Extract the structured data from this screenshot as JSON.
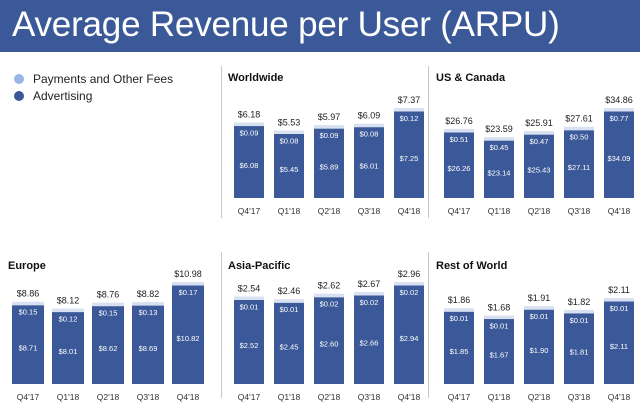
{
  "title": "Average Revenue per User (ARPU)",
  "legend": [
    {
      "label": "Payments and Other Fees",
      "color": "#9ab6e8"
    },
    {
      "label": "Advertising",
      "color": "#3b5998"
    }
  ],
  "colors": {
    "advertising": "#3b5998",
    "payments": "#d8e1f2",
    "title_bar": "#3b5998"
  },
  "chart_data": [
    {
      "type": "bar",
      "stacked": true,
      "title": "Worldwide",
      "categories": [
        "Q4'17",
        "Q1'18",
        "Q2'18",
        "Q3'18",
        "Q4'18"
      ],
      "series": [
        {
          "name": "Advertising",
          "values": [
            6.08,
            5.45,
            5.89,
            6.01,
            7.25
          ],
          "labels": [
            "$6.08",
            "$5.45",
            "$5.89",
            "$6.01",
            "$7.25"
          ]
        },
        {
          "name": "Payments and Other Fees",
          "values": [
            0.09,
            0.08,
            0.09,
            0.08,
            0.12
          ],
          "labels": [
            "$0.09",
            "$0.08",
            "$0.09",
            "$0.08",
            "$0.12"
          ]
        }
      ],
      "totals": [
        6.18,
        5.53,
        5.97,
        6.09,
        7.37
      ],
      "total_labels": [
        "$6.18",
        "$5.53",
        "$5.97",
        "$6.09",
        "$7.37"
      ]
    },
    {
      "type": "bar",
      "stacked": true,
      "title": "US & Canada",
      "categories": [
        "Q4'17",
        "Q1'18",
        "Q2'18",
        "Q3'18",
        "Q4'18"
      ],
      "series": [
        {
          "name": "Advertising",
          "values": [
            26.26,
            23.14,
            25.43,
            27.11,
            34.09
          ],
          "labels": [
            "$26.26",
            "$23.14",
            "$25.43",
            "$27.11",
            "$34.09"
          ]
        },
        {
          "name": "Payments and Other Fees",
          "values": [
            0.51,
            0.45,
            0.47,
            0.5,
            0.77
          ],
          "labels": [
            "$0.51",
            "$0.45",
            "$0.47",
            "$0.50",
            "$0.77"
          ]
        }
      ],
      "totals": [
        26.76,
        23.59,
        25.91,
        27.61,
        34.86
      ],
      "total_labels": [
        "$26.76",
        "$23.59",
        "$25.91",
        "$27.61",
        "$34.86"
      ]
    },
    {
      "type": "bar",
      "stacked": true,
      "title": "Europe",
      "categories": [
        "Q4'17",
        "Q1'18",
        "Q2'18",
        "Q3'18",
        "Q4'18"
      ],
      "series": [
        {
          "name": "Advertising",
          "values": [
            8.71,
            8.01,
            8.62,
            8.69,
            10.82
          ],
          "labels": [
            "$8.71",
            "$8.01",
            "$8.62",
            "$8.69",
            "$10.82"
          ]
        },
        {
          "name": "Payments and Other Fees",
          "values": [
            0.15,
            0.12,
            0.15,
            0.13,
            0.17
          ],
          "labels": [
            "$0.15",
            "$0.12",
            "$0.15",
            "$0.13",
            "$0.17"
          ]
        }
      ],
      "totals": [
        8.86,
        8.12,
        8.76,
        8.82,
        10.98
      ],
      "total_labels": [
        "$8.86",
        "$8.12",
        "$8.76",
        "$8.82",
        "$10.98"
      ]
    },
    {
      "type": "bar",
      "stacked": true,
      "title": "Asia-Pacific",
      "categories": [
        "Q4'17",
        "Q1'18",
        "Q2'18",
        "Q3'18",
        "Q4'18"
      ],
      "series": [
        {
          "name": "Advertising",
          "values": [
            2.52,
            2.45,
            2.6,
            2.66,
            2.94
          ],
          "labels": [
            "$2.52",
            "$2.45",
            "$2.60",
            "$2.66",
            "$2.94"
          ]
        },
        {
          "name": "Payments and Other Fees",
          "values": [
            0.01,
            0.01,
            0.02,
            0.02,
            0.02
          ],
          "labels": [
            "$0.01",
            "$0.01",
            "$0.02",
            "$0.02",
            "$0.02"
          ]
        }
      ],
      "totals": [
        2.54,
        2.46,
        2.62,
        2.67,
        2.96
      ],
      "total_labels": [
        "$2.54",
        "$2.46",
        "$2.62",
        "$2.67",
        "$2.96"
      ]
    },
    {
      "type": "bar",
      "stacked": true,
      "title": "Rest of World",
      "categories": [
        "Q4'17",
        "Q1'18",
        "Q2'18",
        "Q3'18",
        "Q4'18"
      ],
      "series": [
        {
          "name": "Advertising",
          "values": [
            1.85,
            1.67,
            1.9,
            1.81,
            2.11
          ],
          "labels": [
            "$1.85",
            "$1.67",
            "$1.90",
            "$1.81",
            "$2.11"
          ]
        },
        {
          "name": "Payments and Other Fees",
          "values": [
            0.01,
            0.01,
            0.01,
            0.01,
            0.01
          ],
          "labels": [
            "$0.01",
            "$0.01",
            "$0.01",
            "$0.01",
            "$0.01"
          ]
        }
      ],
      "totals": [
        1.86,
        1.68,
        1.91,
        1.82,
        2.11
      ],
      "total_labels": [
        "$1.86",
        "$1.68",
        "$1.91",
        "$1.82",
        "$2.11"
      ]
    }
  ]
}
